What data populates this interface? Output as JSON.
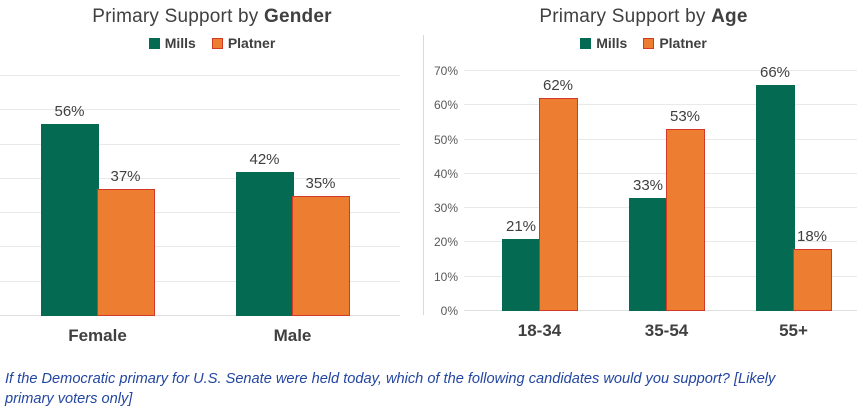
{
  "colors": {
    "mills_green": "#056A52",
    "platner_orange": "#ED7D31",
    "platner_border": "#D13A27",
    "title_gray": "#404040",
    "axis_tick_gray": "#595959",
    "gridline_gray": "#E9E9E9",
    "caption_blue": "#2346A0"
  },
  "caption": "If the Democratic primary for U.S. Senate were held today, which of the following candidates would you support? [Likely primary voters only]",
  "chart_data": [
    {
      "type": "bar",
      "title_prefix": "Primary Support by",
      "title_bold": "Gender",
      "categories": [
        "Female",
        "Male"
      ],
      "series": [
        {
          "name": "Mills",
          "color": "#056A52",
          "values": [
            56,
            42
          ]
        },
        {
          "name": "Platner",
          "color": "#ED7D31",
          "border_color": "#D13A27",
          "values": [
            37,
            35
          ]
        }
      ],
      "data_label_suffix": "%",
      "ylim": [
        0,
        70
      ],
      "grid_step": 10,
      "gridlines": true,
      "y_axis_labels_visible": false,
      "y_tick_labels": [],
      "legend_position": "top"
    },
    {
      "type": "bar",
      "title_prefix": "Primary Support by",
      "title_bold": "Age",
      "categories": [
        "18-34",
        "35-54",
        "55+"
      ],
      "series": [
        {
          "name": "Mills",
          "color": "#056A52",
          "values": [
            21,
            33,
            66
          ]
        },
        {
          "name": "Platner",
          "color": "#ED7D31",
          "border_color": "#D13A27",
          "values": [
            62,
            53,
            18
          ]
        }
      ],
      "data_label_suffix": "%",
      "ylim": [
        0,
        70
      ],
      "grid_step": 10,
      "gridlines": true,
      "y_axis_labels_visible": true,
      "y_tick_labels": [
        "0%",
        "10%",
        "20%",
        "30%",
        "40%",
        "50%",
        "60%",
        "70%"
      ],
      "legend_position": "top"
    }
  ]
}
